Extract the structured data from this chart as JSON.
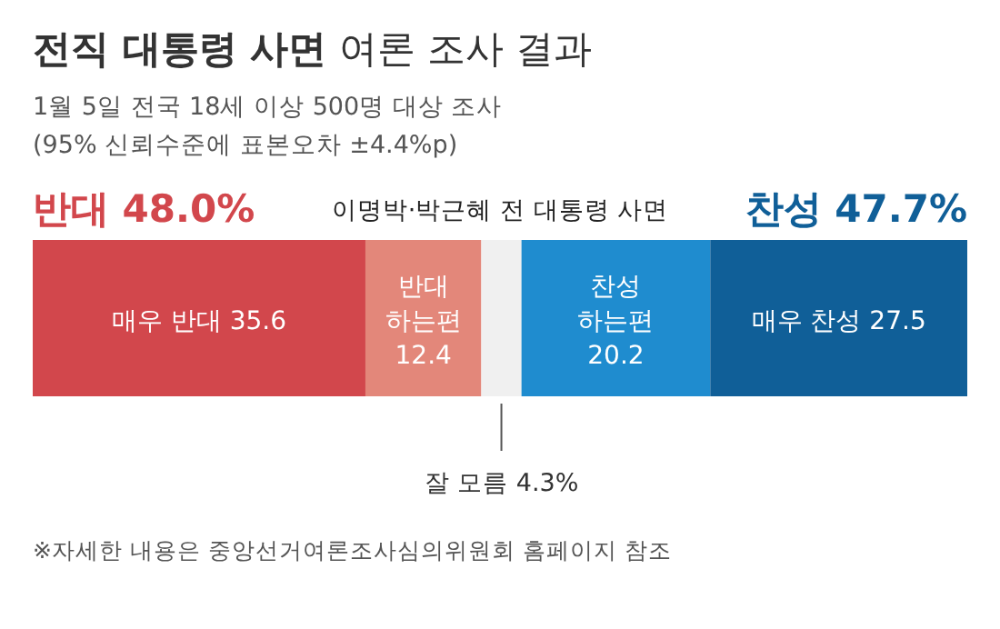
{
  "chart_data": {
    "type": "bar",
    "stacked": true,
    "orientation": "horizontal",
    "title": "**전직 대통령 사면** 여론 조사 결과",
    "subtitle": "1월 5일 전국 18세 이상 500명 대상 조사",
    "categories": [
      null
    ],
    "series": [
      {
        "name": "매우 반대",
        "color": "#d2474c",
        "values": [
          35.6
        ],
        "value_labels": [
          "35.6"
        ]
      },
      {
        "name": "반대 하는편",
        "color": "#e3877a",
        "values": [
          12.4
        ],
        "value_labels": [
          "12.4"
        ]
      },
      {
        "name": "잘 모름",
        "color": "#f0f0f0",
        "values": [
          4.3
        ],
        "value_labels": [
          "4.3%"
        ]
      },
      {
        "name": "찬성 하는편",
        "color": "#1f8ccf",
        "values": [
          20.2
        ],
        "value_labels": [
          "20.2"
        ]
      },
      {
        "name": "매우 찬성",
        "color": "#105f98",
        "values": [
          27.5
        ],
        "value_labels": [
          "27.5"
        ]
      }
    ],
    "annotations": [
      "(95% 신뢰수준에 표본오차 ±4.4%p)",
      "반대 48.0%",
      "찬성 47.7%",
      "※자세한 내용은 중앙선거여론조사심의위원회 홈페이지 참조",
      "이명박·박근혜 전 대통령 사면"
    ]
  }
}
